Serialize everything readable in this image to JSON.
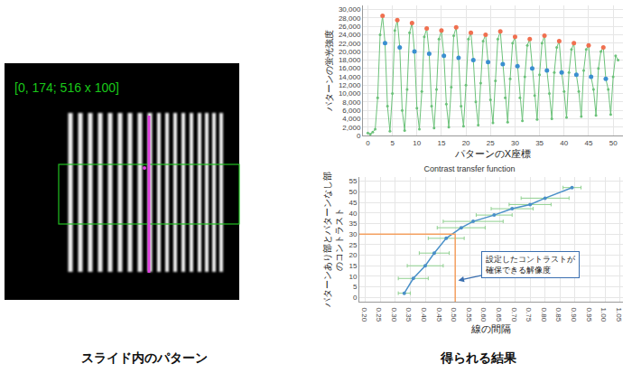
{
  "image": {
    "label": "[0, 174; 516 x 100]"
  },
  "captions": [
    "スライド内のパターン",
    "得られる結果"
  ],
  "chart_data": [
    {
      "type": "line",
      "x_label": "パターンのX座標",
      "y_label": "パターンの蛍光強度",
      "xlim": [
        -1,
        52
      ],
      "xticks": [
        0,
        5,
        10,
        15,
        20,
        25,
        30,
        35,
        40,
        45,
        50
      ],
      "ylim": [
        0,
        31000
      ],
      "yticks": [
        0,
        {
          "value": 2000,
          "label": "2,000"
        },
        {
          "value": 4000,
          "label": "4,000"
        },
        {
          "value": 6000,
          "label": "6,000"
        },
        {
          "value": 8000,
          "label": "8,000"
        },
        {
          "value": 10000,
          "label": "10,000"
        },
        {
          "value": 12000,
          "label": "12,000"
        },
        {
          "value": 14000,
          "label": "14,000"
        },
        {
          "value": 16000,
          "label": "16,000"
        },
        {
          "value": 18000,
          "label": "18,000"
        },
        {
          "value": 20000,
          "label": "20,000"
        },
        {
          "value": 22000,
          "label": "22,000"
        },
        {
          "value": 24000,
          "label": "24,000"
        },
        {
          "value": 26000,
          "label": "26,000"
        },
        {
          "value": 28000,
          "label": "28,000"
        },
        {
          "value": 30000,
          "label": "30,000"
        }
      ],
      "grid": true,
      "series": [
        {
          "type": "line",
          "color": "#6cc27a",
          "marker": "circle",
          "x": [
            0,
            0.5,
            1,
            1.5,
            2,
            2.5,
            3,
            3.5,
            4,
            4.5,
            5,
            5.5,
            6,
            6.5,
            7,
            7.5,
            8,
            8.5,
            9,
            9.5,
            10,
            10.5,
            11,
            11.5,
            12,
            12.5,
            13,
            13.5,
            14,
            14.5,
            15,
            15.5,
            16,
            16.5,
            17,
            17.5,
            18,
            18.5,
            19,
            19.5,
            20,
            20.5,
            21,
            21.5,
            22,
            22.5,
            23,
            23.5,
            24,
            24.5,
            25,
            25.5,
            26,
            26.5,
            27,
            27.5,
            28,
            28.5,
            29,
            29.5,
            30,
            30.5,
            31,
            31.5,
            32,
            32.5,
            33,
            33.5,
            34,
            34.5,
            35,
            35.5,
            36,
            36.5,
            37,
            37.5,
            38,
            38.5,
            39,
            39.5,
            40,
            40.5,
            41,
            41.5,
            42,
            42.5,
            43,
            43.5,
            44,
            44.5,
            45,
            45.5,
            46,
            46.5,
            47,
            47.5,
            48,
            48.5,
            49,
            49.5,
            50,
            50.5,
            51
          ],
          "values": [
            600,
            300,
            800,
            1500,
            9000,
            24000,
            28500,
            22000,
            7000,
            1000,
            10000,
            25000,
            27500,
            21000,
            6000,
            1200,
            11000,
            24500,
            26800,
            20000,
            6500,
            1500,
            10500,
            23500,
            25500,
            19500,
            7000,
            1800,
            11000,
            23000,
            25000,
            19000,
            7500,
            2000,
            11500,
            23800,
            25800,
            18500,
            7000,
            2200,
            12000,
            23000,
            24500,
            18000,
            8000,
            2500,
            12500,
            22500,
            24000,
            17500,
            8500,
            3000,
            13000,
            23000,
            24800,
            17000,
            9000,
            3200,
            13500,
            22000,
            23500,
            16500,
            9000,
            3500,
            14000,
            21500,
            23000,
            16000,
            9500,
            3800,
            14500,
            22000,
            23800,
            15500,
            10000,
            4000,
            15000,
            21000,
            22500,
            15000,
            10500,
            4300,
            15000,
            20500,
            22000,
            14500,
            10500,
            4500,
            15500,
            20500,
            21500,
            14000,
            11000,
            4800,
            16000,
            20000,
            21000,
            13500,
            11000,
            5000,
            14000,
            19000,
            18000
          ]
        },
        {
          "type": "scatter",
          "color": "#f07050",
          "marker": "circle",
          "x": [
            3,
            6,
            9,
            12,
            15,
            18,
            21,
            24,
            27,
            30,
            33,
            36,
            39,
            42,
            45,
            48
          ],
          "values": [
            28500,
            27500,
            26800,
            25500,
            25000,
            25800,
            24500,
            24000,
            24800,
            23500,
            23000,
            23800,
            22500,
            22000,
            21500,
            21000
          ]
        },
        {
          "type": "scatter",
          "color": "#3a8fd0",
          "marker": "circle",
          "x": [
            3.5,
            6.5,
            9.5,
            12.5,
            15.5,
            18.5,
            21.5,
            24.5,
            27.5,
            30.5,
            33.5,
            36.5,
            39.5,
            42.5,
            45.5,
            48.5
          ],
          "values": [
            22000,
            21000,
            20000,
            19500,
            19000,
            18500,
            18000,
            17500,
            17000,
            16500,
            16000,
            15500,
            15000,
            14500,
            14000,
            13500
          ]
        }
      ]
    },
    {
      "type": "line",
      "title": "Contrast transfer function",
      "x_label": "線の間隔",
      "y_label": [
        "パターンあり部とパターンなし部",
        "のコントラスト"
      ],
      "xlim": [
        0.18,
        1.06
      ],
      "xticks": [
        {
          "value": 0.2,
          "label": "0.20"
        },
        {
          "value": 0.25,
          "label": "0.25"
        },
        {
          "value": 0.3,
          "label": "0.30"
        },
        {
          "value": 0.35,
          "label": "0.35"
        },
        {
          "value": 0.4,
          "label": "0.40"
        },
        {
          "value": 0.45,
          "label": "0.45"
        },
        {
          "value": 0.5,
          "label": "0.50"
        },
        {
          "value": 0.55,
          "label": "0.55"
        },
        {
          "value": 0.6,
          "label": "0.60"
        },
        {
          "value": 0.65,
          "label": "0.65"
        },
        {
          "value": 0.7,
          "label": "0.70"
        },
        {
          "value": 0.75,
          "label": "0.75"
        },
        {
          "value": 0.8,
          "label": "0.80"
        },
        {
          "value": 0.85,
          "label": "0.85"
        },
        {
          "value": 0.9,
          "label": "0.90"
        },
        {
          "value": 0.95,
          "label": "0.95"
        },
        {
          "value": 1.0,
          "label": "1.00"
        },
        {
          "value": 1.05,
          "label": "1.05"
        }
      ],
      "ylim": [
        -2,
        57
      ],
      "yticks": [
        0,
        5,
        10,
        15,
        20,
        25,
        30,
        35,
        40,
        45,
        50,
        55
      ],
      "grid": true,
      "series": [
        {
          "type": "line",
          "color": "#4a90c8",
          "marker": "circle",
          "x": [
            0.33,
            0.36,
            0.4,
            0.43,
            0.47,
            0.52,
            0.56,
            0.63,
            0.69,
            0.75,
            0.8,
            0.89
          ],
          "values": [
            2,
            9,
            15,
            21,
            28,
            33,
            36,
            39,
            42,
            44,
            47,
            52
          ],
          "x_errors": [
            0.02,
            0.05,
            0.06,
            0.05,
            0.06,
            0.08,
            0.1,
            0.06,
            0.07,
            0.07,
            0.08,
            0.03
          ]
        },
        {
          "type": "line",
          "color": "#f4a060",
          "x": [
            0.18,
            0.5,
            0.5
          ],
          "values": [
            30,
            30,
            -2
          ]
        }
      ],
      "annotation": {
        "text": [
          "設定したコントラストが",
          "確保できる解像度"
        ],
        "x": 0.51,
        "y": 8
      }
    }
  ]
}
